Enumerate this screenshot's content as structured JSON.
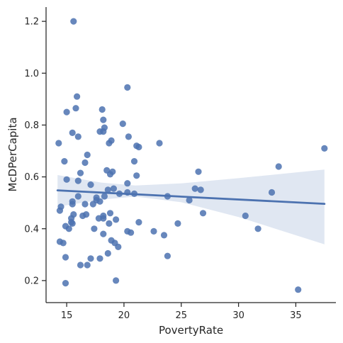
{
  "chart_data": {
    "type": "scatter",
    "title": "",
    "xlabel": "PovertyRate",
    "ylabel": "McDPerCapita",
    "xlim": [
      13.2,
      38.5
    ],
    "ylim": [
      0.115,
      1.255
    ],
    "xticks": [
      15,
      20,
      25,
      30,
      35
    ],
    "yticks": [
      0.2,
      0.4,
      0.6,
      0.8,
      1.0,
      1.2
    ],
    "grid": false,
    "marker_color": "#4c72b0",
    "regression": {
      "x": [
        14.2,
        37.5
      ],
      "y": [
        0.548,
        0.496
      ],
      "ci_color": "#dbe3f0",
      "ci_upper": [
        [
          14.2,
          0.607
        ],
        [
          18.0,
          0.578
        ],
        [
          21.0,
          0.567
        ],
        [
          25.0,
          0.575
        ],
        [
          30.0,
          0.595
        ],
        [
          37.5,
          0.628
        ]
      ],
      "ci_lower": [
        [
          14.2,
          0.485
        ],
        [
          18.0,
          0.512
        ],
        [
          21.0,
          0.524
        ],
        [
          25.0,
          0.502
        ],
        [
          30.0,
          0.445
        ],
        [
          37.5,
          0.34
        ]
      ]
    },
    "points": [
      {
        "x": 15.6,
        "y": 1.2
      },
      {
        "x": 20.3,
        "y": 0.945
      },
      {
        "x": 15.9,
        "y": 0.91
      },
      {
        "x": 15.8,
        "y": 0.865
      },
      {
        "x": 18.1,
        "y": 0.86
      },
      {
        "x": 15.0,
        "y": 0.85
      },
      {
        "x": 18.2,
        "y": 0.82
      },
      {
        "x": 19.9,
        "y": 0.805
      },
      {
        "x": 18.3,
        "y": 0.79
      },
      {
        "x": 17.9,
        "y": 0.775
      },
      {
        "x": 18.2,
        "y": 0.775
      },
      {
        "x": 15.5,
        "y": 0.77
      },
      {
        "x": 16.0,
        "y": 0.755
      },
      {
        "x": 20.4,
        "y": 0.755
      },
      {
        "x": 18.9,
        "y": 0.74
      },
      {
        "x": 14.3,
        "y": 0.73
      },
      {
        "x": 18.7,
        "y": 0.73
      },
      {
        "x": 23.1,
        "y": 0.73
      },
      {
        "x": 21.1,
        "y": 0.72
      },
      {
        "x": 21.3,
        "y": 0.715
      },
      {
        "x": 37.5,
        "y": 0.71
      },
      {
        "x": 16.8,
        "y": 0.685
      },
      {
        "x": 14.8,
        "y": 0.66
      },
      {
        "x": 20.9,
        "y": 0.66
      },
      {
        "x": 16.6,
        "y": 0.655
      },
      {
        "x": 33.5,
        "y": 0.64
      },
      {
        "x": 18.5,
        "y": 0.625
      },
      {
        "x": 26.5,
        "y": 0.62
      },
      {
        "x": 19.0,
        "y": 0.62
      },
      {
        "x": 16.2,
        "y": 0.615
      },
      {
        "x": 18.8,
        "y": 0.61
      },
      {
        "x": 21.1,
        "y": 0.605
      },
      {
        "x": 15.0,
        "y": 0.59
      },
      {
        "x": 16.0,
        "y": 0.585
      },
      {
        "x": 20.3,
        "y": 0.575
      },
      {
        "x": 17.1,
        "y": 0.57
      },
      {
        "x": 26.2,
        "y": 0.555
      },
      {
        "x": 19.1,
        "y": 0.555
      },
      {
        "x": 18.6,
        "y": 0.55
      },
      {
        "x": 26.7,
        "y": 0.55
      },
      {
        "x": 20.3,
        "y": 0.54
      },
      {
        "x": 32.9,
        "y": 0.54
      },
      {
        "x": 19.6,
        "y": 0.535
      },
      {
        "x": 20.9,
        "y": 0.535
      },
      {
        "x": 16.0,
        "y": 0.525
      },
      {
        "x": 18.3,
        "y": 0.525
      },
      {
        "x": 23.8,
        "y": 0.525
      },
      {
        "x": 17.6,
        "y": 0.52
      },
      {
        "x": 17.6,
        "y": 0.51
      },
      {
        "x": 25.7,
        "y": 0.51
      },
      {
        "x": 17.9,
        "y": 0.505
      },
      {
        "x": 15.5,
        "y": 0.505
      },
      {
        "x": 15.5,
        "y": 0.495
      },
      {
        "x": 16.6,
        "y": 0.495
      },
      {
        "x": 17.3,
        "y": 0.495
      },
      {
        "x": 14.5,
        "y": 0.485
      },
      {
        "x": 14.4,
        "y": 0.47
      },
      {
        "x": 18.8,
        "y": 0.46
      },
      {
        "x": 26.9,
        "y": 0.46
      },
      {
        "x": 15.6,
        "y": 0.455
      },
      {
        "x": 16.7,
        "y": 0.455
      },
      {
        "x": 16.4,
        "y": 0.45
      },
      {
        "x": 18.2,
        "y": 0.45
      },
      {
        "x": 30.6,
        "y": 0.45
      },
      {
        "x": 18.2,
        "y": 0.44
      },
      {
        "x": 15.4,
        "y": 0.44
      },
      {
        "x": 17.8,
        "y": 0.44
      },
      {
        "x": 19.3,
        "y": 0.435
      },
      {
        "x": 15.4,
        "y": 0.425
      },
      {
        "x": 21.3,
        "y": 0.425
      },
      {
        "x": 18.7,
        "y": 0.42
      },
      {
        "x": 15.5,
        "y": 0.42
      },
      {
        "x": 24.7,
        "y": 0.42
      },
      {
        "x": 14.9,
        "y": 0.41
      },
      {
        "x": 15.2,
        "y": 0.4
      },
      {
        "x": 17.4,
        "y": 0.4
      },
      {
        "x": 31.7,
        "y": 0.4
      },
      {
        "x": 20.3,
        "y": 0.39
      },
      {
        "x": 22.6,
        "y": 0.39
      },
      {
        "x": 20.6,
        "y": 0.385
      },
      {
        "x": 18.2,
        "y": 0.38
      },
      {
        "x": 23.5,
        "y": 0.375
      },
      {
        "x": 18.9,
        "y": 0.355
      },
      {
        "x": 14.4,
        "y": 0.35
      },
      {
        "x": 14.7,
        "y": 0.345
      },
      {
        "x": 19.2,
        "y": 0.345
      },
      {
        "x": 19.5,
        "y": 0.33
      },
      {
        "x": 18.6,
        "y": 0.305
      },
      {
        "x": 23.8,
        "y": 0.295
      },
      {
        "x": 14.9,
        "y": 0.29
      },
      {
        "x": 17.1,
        "y": 0.285
      },
      {
        "x": 17.9,
        "y": 0.285
      },
      {
        "x": 16.2,
        "y": 0.26
      },
      {
        "x": 16.8,
        "y": 0.26
      },
      {
        "x": 19.3,
        "y": 0.2
      },
      {
        "x": 14.9,
        "y": 0.19
      },
      {
        "x": 35.2,
        "y": 0.165
      }
    ]
  }
}
